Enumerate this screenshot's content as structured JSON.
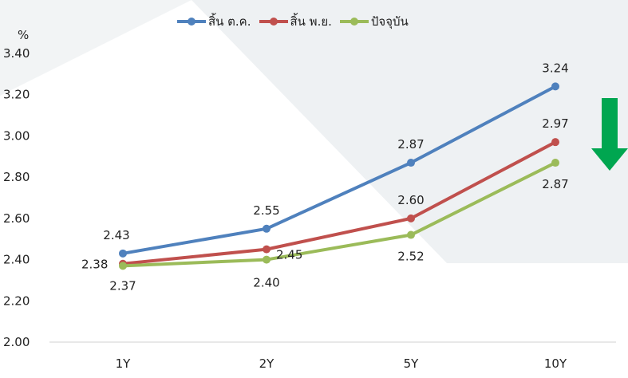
{
  "chart_data": {
    "type": "line",
    "unit_label": "%",
    "categories": [
      "1Y",
      "2Y",
      "5Y",
      "10Y"
    ],
    "ylim": [
      2.0,
      3.4
    ],
    "yticks": [
      "2.00",
      "2.20",
      "2.40",
      "2.60",
      "2.80",
      "3.00",
      "3.20",
      "3.40"
    ],
    "legend_position": "top",
    "grid": false,
    "series": [
      {
        "name": "สิ้น ต.ค.",
        "color": "#4f81bd",
        "values": [
          2.43,
          2.55,
          2.87,
          3.24
        ],
        "labels": [
          "2.43",
          "2.55",
          "2.87",
          "3.24"
        ]
      },
      {
        "name": "สิ้น พ.ย.",
        "color": "#c0504d",
        "values": [
          2.38,
          2.45,
          2.6,
          2.97
        ],
        "labels": [
          "2.38",
          "2.45",
          "2.60",
          "2.97"
        ]
      },
      {
        "name": "ปัจจุบัน",
        "color": "#9bbb59",
        "values": [
          2.37,
          2.4,
          2.52,
          2.87
        ],
        "labels": [
          "2.37",
          "2.40",
          "2.52",
          "2.87"
        ]
      }
    ],
    "annotation": {
      "icon": "down-arrow-icon",
      "color": "#00a650"
    }
  }
}
